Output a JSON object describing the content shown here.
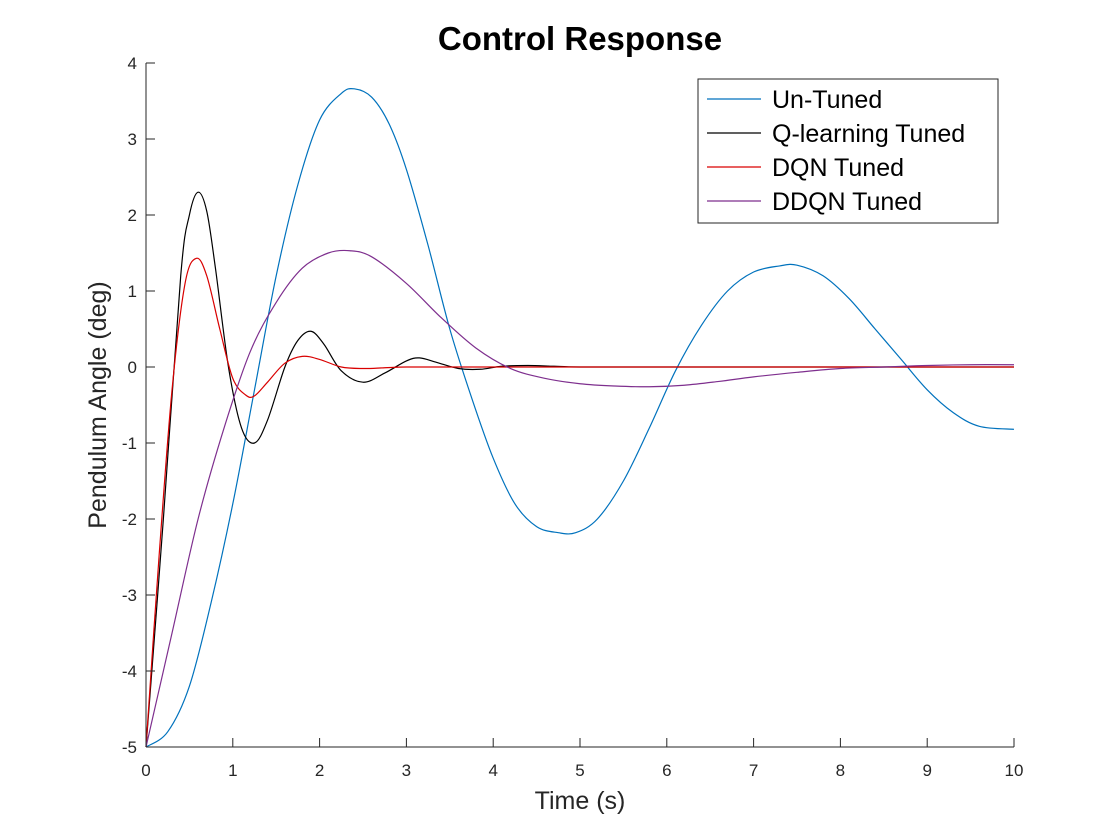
{
  "chart_data": {
    "type": "line",
    "title": "Control Response",
    "xlabel": "Time (s)",
    "ylabel": "Pendulum Angle (deg)",
    "xlim": [
      0,
      10
    ],
    "ylim": [
      -5,
      4
    ],
    "xticks": [
      0,
      1,
      2,
      3,
      4,
      5,
      6,
      7,
      8,
      9,
      10
    ],
    "yticks": [
      -5,
      -4,
      -3,
      -2,
      -1,
      0,
      1,
      2,
      3,
      4
    ],
    "grid": false,
    "legend_position": "top-right",
    "series": [
      {
        "name": "Un-Tuned",
        "color": "#0072BD",
        "x": [
          0,
          0.25,
          0.5,
          0.75,
          1.0,
          1.25,
          1.5,
          1.75,
          2.0,
          2.25,
          2.4,
          2.6,
          2.8,
          3.0,
          3.25,
          3.5,
          3.75,
          4.0,
          4.25,
          4.5,
          4.75,
          4.95,
          5.2,
          5.5,
          5.8,
          6.1,
          6.4,
          6.7,
          7.0,
          7.3,
          7.5,
          7.8,
          8.1,
          8.4,
          8.7,
          9.0,
          9.3,
          9.6,
          10.0
        ],
        "y": [
          -5.0,
          -4.8,
          -4.2,
          -3.1,
          -1.8,
          -0.3,
          1.2,
          2.4,
          3.25,
          3.6,
          3.66,
          3.55,
          3.2,
          2.6,
          1.6,
          0.5,
          -0.4,
          -1.2,
          -1.8,
          -2.1,
          -2.18,
          -2.18,
          -2.0,
          -1.5,
          -0.8,
          -0.05,
          0.55,
          1.0,
          1.25,
          1.33,
          1.34,
          1.2,
          0.9,
          0.5,
          0.1,
          -0.3,
          -0.6,
          -0.78,
          -0.82
        ]
      },
      {
        "name": "Q-learning Tuned",
        "color": "#000000",
        "x": [
          0,
          0.2,
          0.4,
          0.5,
          0.6,
          0.7,
          0.8,
          0.95,
          1.1,
          1.25,
          1.4,
          1.6,
          1.75,
          1.9,
          2.05,
          2.25,
          2.5,
          2.75,
          3.0,
          3.15,
          3.35,
          3.6,
          3.85,
          4.1,
          4.4,
          4.7,
          5.0,
          6.0,
          7.0,
          8.0,
          9.0,
          10.0
        ],
        "y": [
          -5.0,
          -2.0,
          1.2,
          2.0,
          2.3,
          2.05,
          1.3,
          0.0,
          -0.8,
          -1.0,
          -0.7,
          0.0,
          0.35,
          0.47,
          0.3,
          -0.05,
          -0.2,
          -0.08,
          0.08,
          0.12,
          0.06,
          -0.02,
          -0.03,
          0.01,
          0.02,
          0.01,
          0.0,
          0.0,
          0.0,
          0.0,
          0.0,
          0.0
        ]
      },
      {
        "name": "DQN Tuned",
        "color": "#D90000",
        "x": [
          0,
          0.15,
          0.3,
          0.45,
          0.58,
          0.7,
          0.85,
          1.0,
          1.15,
          1.25,
          1.4,
          1.6,
          1.8,
          2.0,
          2.25,
          2.5,
          2.75,
          3.0,
          3.5,
          4.0,
          5.0,
          6.0,
          7.0,
          8.0,
          9.0,
          10.0
        ],
        "y": [
          -5.0,
          -2.5,
          -0.3,
          1.1,
          1.43,
          1.2,
          0.5,
          -0.15,
          -0.37,
          -0.38,
          -0.2,
          0.05,
          0.14,
          0.1,
          0.0,
          -0.02,
          -0.01,
          0.0,
          0.0,
          0.0,
          0.0,
          0.0,
          0.0,
          0.0,
          0.0,
          0.0
        ]
      },
      {
        "name": "DDQN Tuned",
        "color": "#7E2F8E",
        "x": [
          0,
          0.3,
          0.6,
          0.9,
          1.2,
          1.5,
          1.8,
          2.1,
          2.35,
          2.6,
          3.0,
          3.4,
          3.8,
          4.2,
          4.6,
          5.0,
          5.4,
          5.8,
          6.2,
          6.6,
          7.0,
          7.5,
          8.0,
          8.5,
          9.0,
          9.5,
          10.0
        ],
        "y": [
          -5.0,
          -3.5,
          -2.0,
          -0.8,
          0.2,
          0.85,
          1.3,
          1.5,
          1.53,
          1.45,
          1.1,
          0.65,
          0.25,
          -0.02,
          -0.15,
          -0.22,
          -0.25,
          -0.26,
          -0.24,
          -0.19,
          -0.13,
          -0.07,
          -0.02,
          0.0,
          0.02,
          0.03,
          0.03
        ]
      }
    ]
  }
}
